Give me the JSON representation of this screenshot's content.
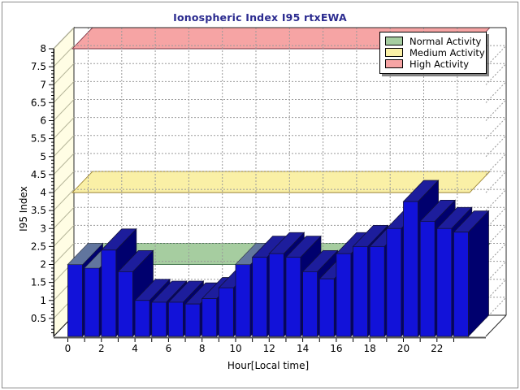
{
  "window": {
    "background": "#ffffff",
    "border_color": "#8a8a8a"
  },
  "title": {
    "text": "Ionospheric Index I95 rtxEWA",
    "color": "#2b2b8f"
  },
  "legend": {
    "items": [
      {
        "label": "Normal Activity",
        "color": "#a6cda0",
        "edge": "#000000"
      },
      {
        "label": "Medium Activity",
        "color": "#faf0a6",
        "edge": "#000000"
      },
      {
        "label": "High Activity",
        "color": "#f6a4a4",
        "edge": "#000000"
      }
    ]
  },
  "axes": {
    "x": {
      "label": "Hour[Local time]",
      "tick_labels": [
        "0",
        "2",
        "4",
        "6",
        "8",
        "10",
        "12",
        "14",
        "16",
        "18",
        "20",
        "22"
      ]
    },
    "y": {
      "label": "I95 Index",
      "tick_labels": [
        "0.5",
        "1",
        "1.5",
        "2",
        "2.5",
        "3",
        "3.5",
        "4",
        "4.5",
        "5",
        "5.5",
        "6",
        "6.5",
        "7",
        "7.5",
        "8"
      ]
    }
  },
  "chart_data": {
    "type": "bar",
    "title": "Ionospheric Index I95 rtxEWA",
    "xlabel": "Hour[Local time]",
    "ylabel": "I95 Index",
    "x": [
      0,
      1,
      2,
      3,
      4,
      5,
      6,
      7,
      8,
      9,
      10,
      11,
      12,
      13,
      14,
      15,
      16,
      17,
      18,
      19,
      20,
      21,
      22,
      23
    ],
    "values": [
      2.0,
      1.9,
      2.4,
      1.8,
      1.0,
      0.95,
      0.95,
      0.9,
      1.05,
      1.35,
      2.0,
      2.2,
      2.3,
      2.2,
      1.8,
      1.6,
      2.3,
      2.5,
      2.5,
      3.0,
      3.75,
      3.2,
      3.0,
      2.9
    ],
    "ylim": [
      0,
      8
    ],
    "y_major_step": 0.5,
    "y_minor_step": 0.1,
    "grid": "dashed",
    "legend_position": "top-right",
    "bands": [
      {
        "name": "Normal Activity",
        "y": 2,
        "color": "#a6cda0",
        "edge": "#4c7c55"
      },
      {
        "name": "Medium Activity",
        "y": 4,
        "color": "#faf0a6",
        "edge": "#9a8230"
      },
      {
        "name": "High Activity",
        "y": 8,
        "color": "#f6a4a4",
        "edge": "#7a3040"
      }
    ],
    "bar_colors": {
      "front": "#1212d9",
      "top": "#1d1d9c",
      "side": "#00006e",
      "outline": "#12123a"
    },
    "wall_color": "#fffde4",
    "grid_color": "#9a9a9a"
  }
}
